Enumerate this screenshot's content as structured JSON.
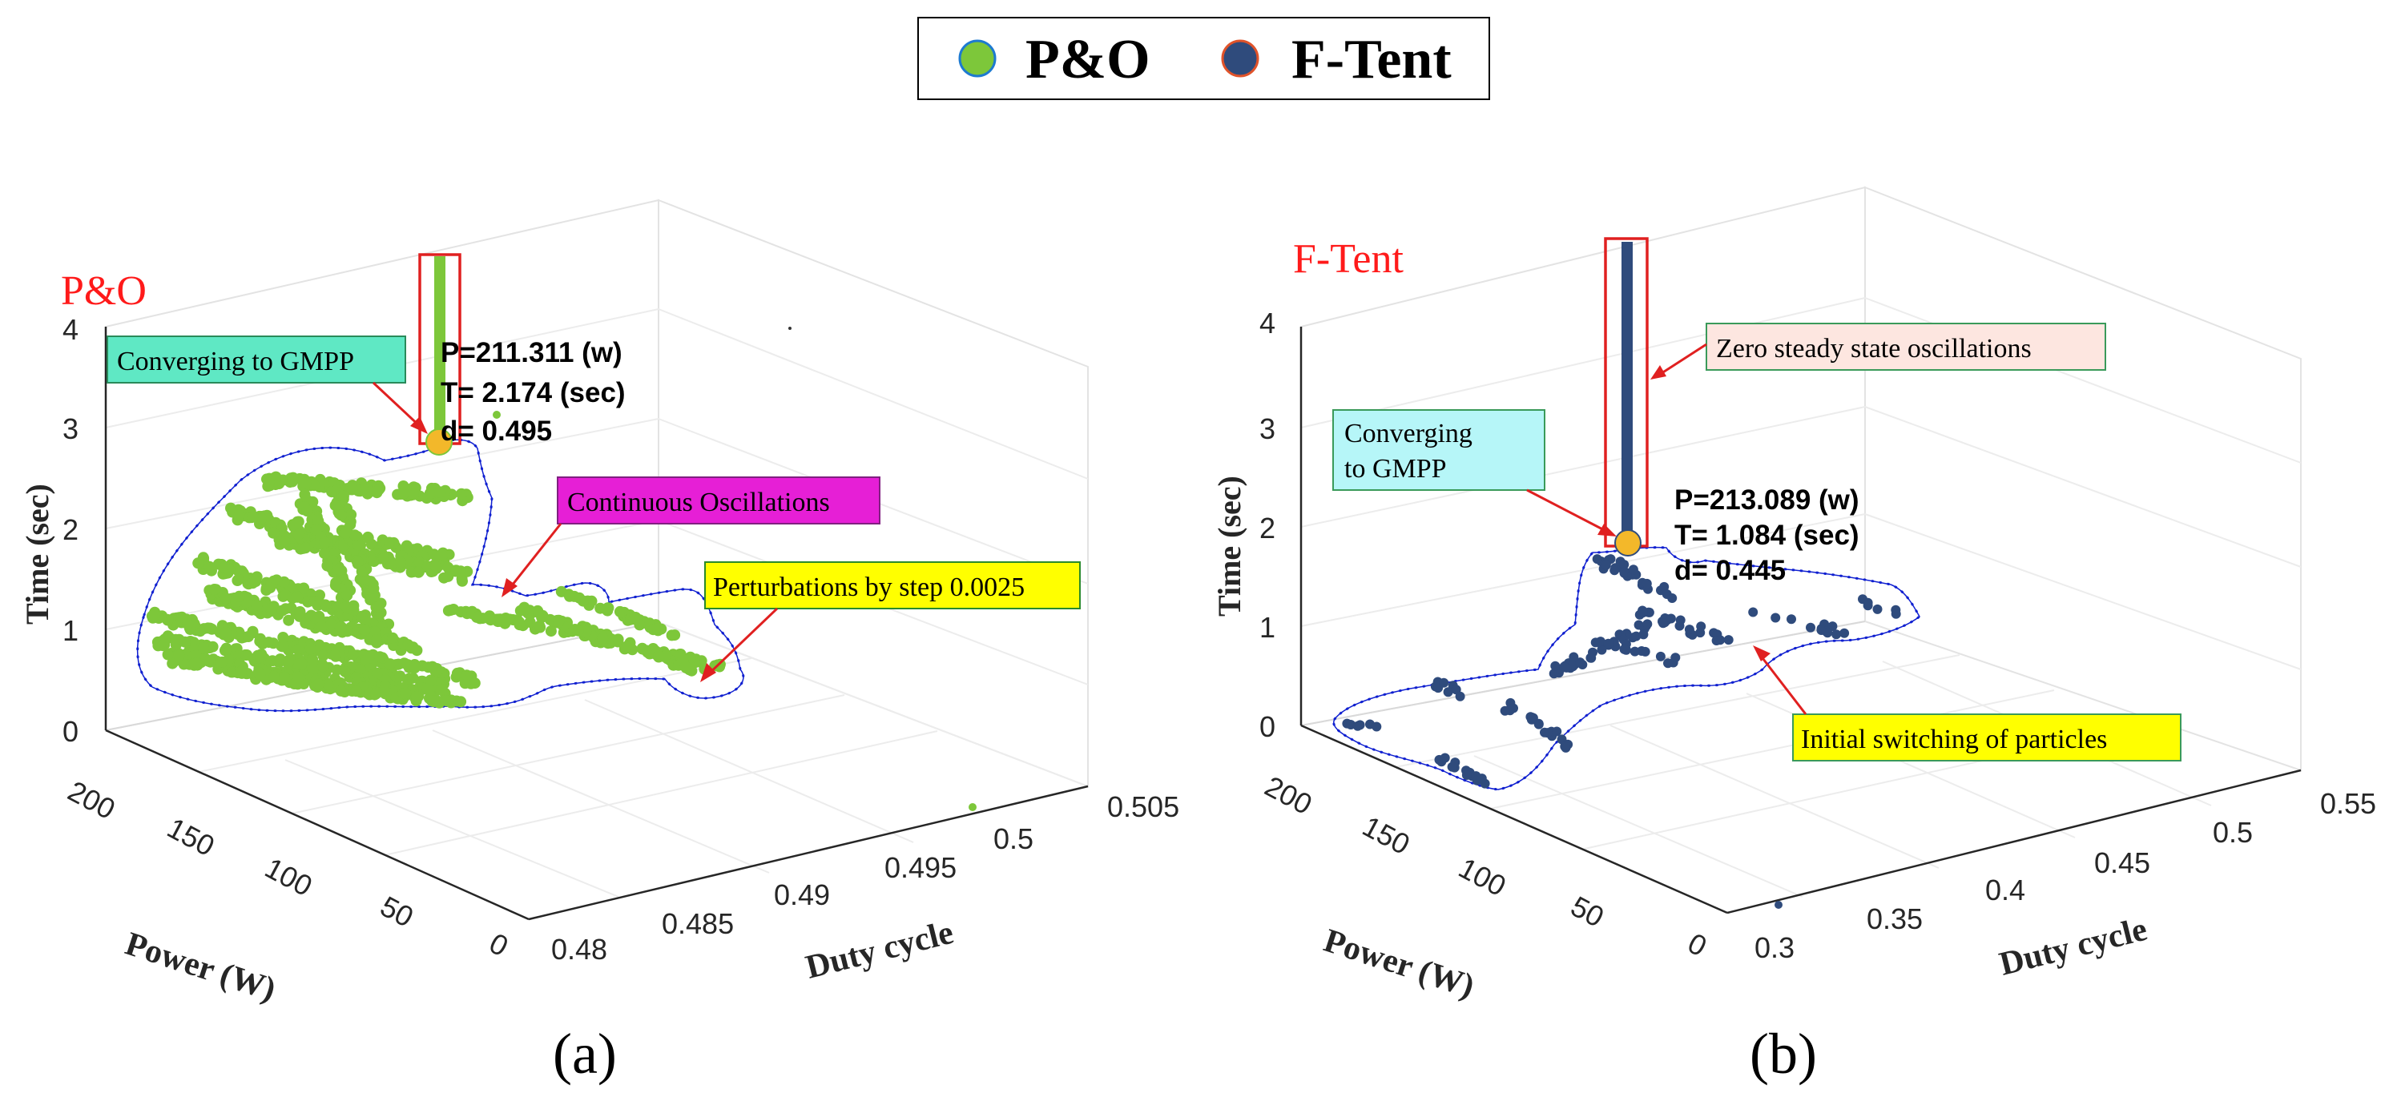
{
  "legend": {
    "items": [
      {
        "label": "P&O",
        "color": "#7dc73a"
      },
      {
        "label": "F-Tent",
        "color": "#2f4b7c"
      }
    ]
  },
  "chart_data": [
    {
      "type": "scatter",
      "panel": "a",
      "title": "P&O",
      "caption": "(a)",
      "xlabel": "Duty cycle",
      "ylabel": "Power (W)",
      "zlabel": "Time (sec)",
      "xticks": [
        "0.48",
        "0.485",
        "0.49",
        "0.495",
        "0.5",
        "0.505"
      ],
      "yticks": [
        "0",
        "50",
        "100",
        "150",
        "200"
      ],
      "zticks": [
        "0",
        "1",
        "2",
        "3",
        "4"
      ],
      "xlim": [
        0.48,
        0.505
      ],
      "ylim": [
        0,
        200
      ],
      "zlim": [
        0,
        4
      ],
      "series_color": "#7dc73a",
      "gmpp": {
        "power_w": 211.311,
        "time_s": 2.174,
        "duty": 0.495
      },
      "readout": [
        "P=211.311 (w)",
        "T= 2.174 (sec)",
        "d= 0.495"
      ],
      "annotations": [
        {
          "text": "Converging to GMPP",
          "bg": "#5fe8c4"
        },
        {
          "text": "Continuous Oscillations",
          "bg": "#e61fd6"
        },
        {
          "text": "Perturbations by step 0.0025",
          "bg": "#ffff00"
        }
      ]
    },
    {
      "type": "scatter",
      "panel": "b",
      "title": "F-Tent",
      "caption": "(b)",
      "xlabel": "Duty cycle",
      "ylabel": "Power (W)",
      "zlabel": "Time (sec)",
      "xticks": [
        "0.3",
        "0.35",
        "0.4",
        "0.45",
        "0.5",
        "0.55"
      ],
      "yticks": [
        "0",
        "50",
        "100",
        "150",
        "200"
      ],
      "zticks": [
        "0",
        "1",
        "2",
        "3",
        "4"
      ],
      "xlim": [
        0.3,
        0.55
      ],
      "ylim": [
        0,
        200
      ],
      "zlim": [
        0,
        4
      ],
      "series_color": "#2f4b7c",
      "gmpp": {
        "power_w": 213.089,
        "time_s": 1.084,
        "duty": 0.445
      },
      "readout": [
        "P=213.089 (w)",
        "T= 1.084 (sec)",
        "d= 0.445"
      ],
      "annotations": [
        {
          "text": "Zero steady state oscillations",
          "bg": "#fde6e0"
        },
        {
          "text": "Converging",
          "bg": "#b6f6f8"
        },
        {
          "text": "to GMPP",
          "bg": "#b6f6f8"
        },
        {
          "text": "Initial switching of particles",
          "bg": "#ffff00"
        }
      ]
    }
  ]
}
